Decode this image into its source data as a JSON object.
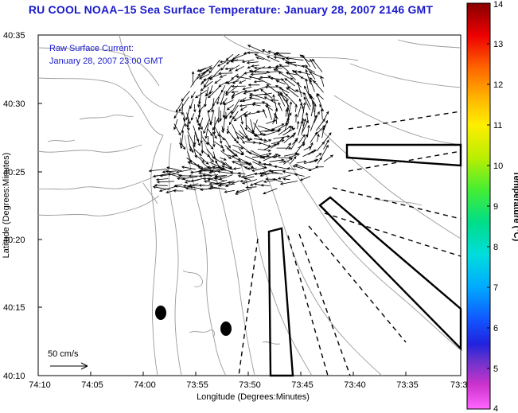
{
  "title": "RU COOL  NOAA–15  Sea Surface Temperature:  January 28, 2007 2146 GMT",
  "annotation": {
    "line1": "Raw Surface Current:",
    "line2": "January 28, 2007 23:00 GMT"
  },
  "scale_label": "50 cm/s",
  "axes": {
    "xlabel": "Longitude (Degrees:Minutes)",
    "ylabel": "Latitude (Degrees:Minutes)",
    "xticks": [
      "74:10",
      "74:05",
      "74:00",
      "73:55",
      "73:50",
      "73:45",
      "73:40",
      "73:35",
      "73:3"
    ],
    "yticks": [
      "40:35",
      "40:30",
      "40:25",
      "40:20",
      "40:15",
      "40:10"
    ]
  },
  "colorbar": {
    "label": "Temperature (°C)",
    "ticks": [
      "14",
      "13",
      "12",
      "11",
      "10",
      "9",
      "8",
      "7",
      "6",
      "5",
      "4"
    ],
    "min": 4,
    "max": 14
  },
  "colors": {
    "title": "#1a1acc",
    "annotation": "#1a1acc",
    "contours": "#9a9a9a",
    "vectors": "#000000"
  }
}
